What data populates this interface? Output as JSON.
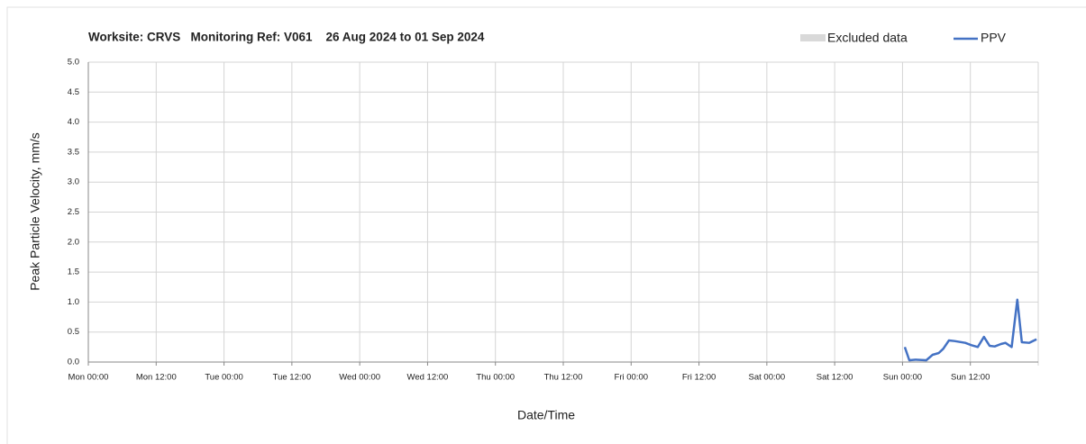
{
  "chart_data": {
    "type": "line",
    "subtitle": "Worksite: CRVS   Monitoring Ref: V061    26 Aug 2024 to 01 Sep 2024",
    "xlabel": "Date/Time",
    "ylabel": "Peak Particle Velocity, mm/s",
    "excluded_data": {
      "label": "Excluded data",
      "color": "#d9d9d9"
    },
    "series": [
      {
        "name": "PPV",
        "color": "#4472c4",
        "x": [
          144.4,
          145.2,
          146.3,
          148.2,
          149.3,
          150.4,
          151.2,
          152.2,
          153.2,
          155.1,
          156.2,
          157.3,
          158.4,
          159.4,
          160.3,
          161.4,
          162.2,
          163.3,
          164.3,
          165.1,
          166.4,
          167.7
        ],
        "values": [
          0.25,
          0.03,
          0.04,
          0.03,
          0.12,
          0.15,
          0.22,
          0.36,
          0.35,
          0.32,
          0.28,
          0.25,
          0.42,
          0.27,
          0.26,
          0.3,
          0.32,
          0.25,
          1.04,
          0.33,
          0.32,
          0.38
        ]
      }
    ],
    "xlim": [
      0,
      168
    ],
    "xticks": [
      {
        "value": 0,
        "label": "Mon 00:00"
      },
      {
        "value": 12,
        "label": "Mon 12:00"
      },
      {
        "value": 24,
        "label": "Tue 00:00"
      },
      {
        "value": 36,
        "label": "Tue 12:00"
      },
      {
        "value": 48,
        "label": "Wed 00:00"
      },
      {
        "value": 60,
        "label": "Wed 12:00"
      },
      {
        "value": 72,
        "label": "Thu 00:00"
      },
      {
        "value": 84,
        "label": "Thu 12:00"
      },
      {
        "value": 96,
        "label": "Fri 00:00"
      },
      {
        "value": 108,
        "label": "Fri 12:00"
      },
      {
        "value": 120,
        "label": "Sat 00:00"
      },
      {
        "value": 132,
        "label": "Sat 12:00"
      },
      {
        "value": 144,
        "label": "Sun 00:00"
      },
      {
        "value": 156,
        "label": "Sun 12:00"
      }
    ],
    "ylim": [
      0,
      5
    ],
    "yticks": [
      {
        "value": 0,
        "label": "0.0"
      },
      0.5,
      {
        "value": 1,
        "label": "1.0"
      },
      1.5,
      {
        "value": 2,
        "label": "2.0"
      },
      2.5,
      {
        "value": 3,
        "label": "3.0"
      },
      3.5,
      {
        "value": 4,
        "label": "4.0"
      },
      4.5,
      {
        "value": 5,
        "label": "5.0"
      }
    ],
    "grid": true
  }
}
